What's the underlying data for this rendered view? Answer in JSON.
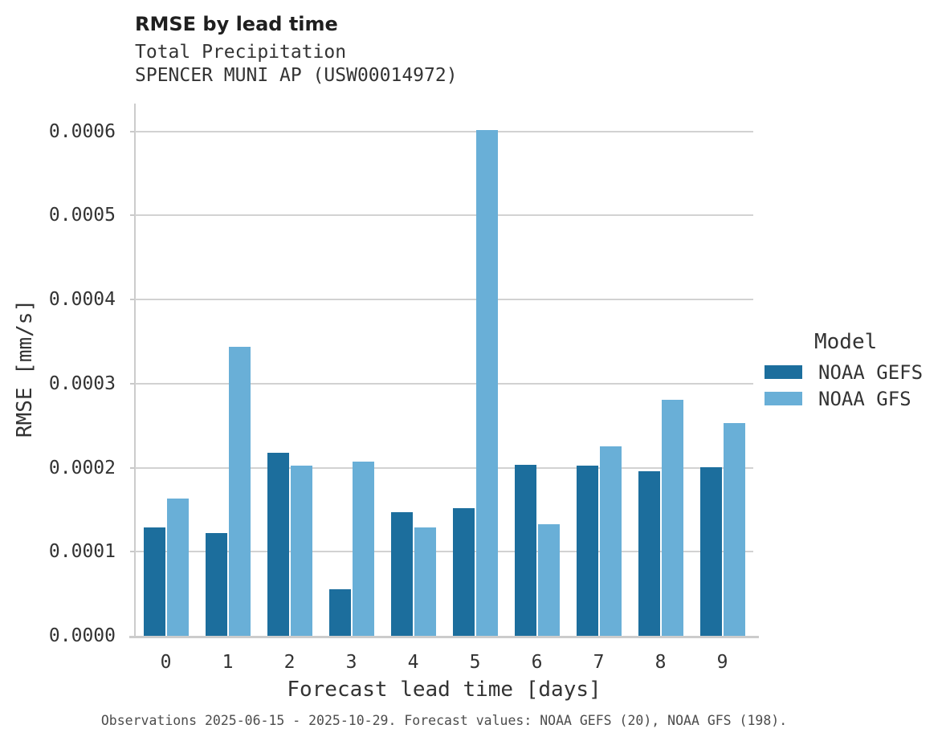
{
  "chart_data": {
    "type": "bar",
    "title": "RMSE by lead time",
    "subtitle1": "Total Precipitation",
    "subtitle2": "SPENCER MUNI AP (USW00014972)",
    "xlabel": "Forecast lead time [days]",
    "ylabel": "RMSE [mm/s]",
    "categories": [
      "0",
      "1",
      "2",
      "3",
      "4",
      "5",
      "6",
      "7",
      "8",
      "9"
    ],
    "series": [
      {
        "name": "NOAA GEFS",
        "color": "#1C6E9D",
        "values": [
          0.000129,
          0.000122,
          0.000218,
          5.55e-05,
          0.000147,
          0.000152,
          0.000203,
          0.000202,
          0.000196,
          0.000201
        ]
      },
      {
        "name": "NOAA GFS",
        "color": "#69AFD7",
        "values": [
          0.000163,
          0.000344,
          0.000202,
          0.000207,
          0.000129,
          0.000602,
          0.000133,
          0.000225,
          0.000281,
          0.000253
        ]
      }
    ],
    "ylim": [
      0,
      0.000633
    ],
    "yticks": [
      0,
      0.0001,
      0.0002,
      0.0003,
      0.0004,
      0.0005,
      0.0006
    ],
    "ytick_labels": [
      "0.0000",
      "0.0001",
      "0.0002",
      "0.0003",
      "0.0004",
      "0.0005",
      "0.0006"
    ],
    "grid": "horizontal",
    "legend": {
      "title": "Model",
      "position": "right-center"
    },
    "footnote": "Observations 2025-06-15 - 2025-10-29. Forecast values: NOAA GEFS (20), NOAA GFS (198)."
  },
  "colors": {
    "noaa_gefs": "#1C6E9D",
    "noaa_gfs": "#69AFD7",
    "gridline": "#d2d2d2",
    "spine": "#cccccc",
    "title_text": "#1f1f1f",
    "body_text": "#333333",
    "footnote_text": "#4d4d4d",
    "background": "#ffffff"
  }
}
